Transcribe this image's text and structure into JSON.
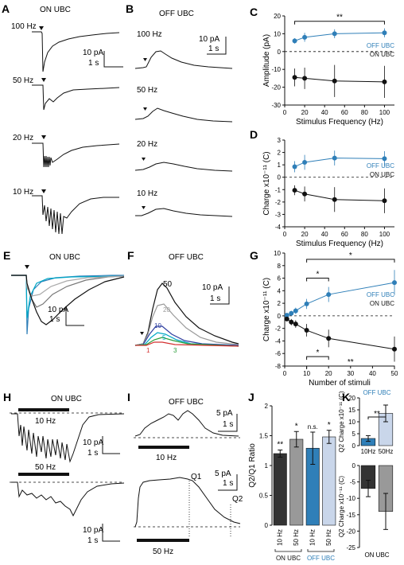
{
  "panels": {
    "A": {
      "letter": "A",
      "title": "ON UBC",
      "traces": [
        "100 Hz",
        "50 Hz",
        "20 Hz",
        "10 Hz"
      ],
      "scale": [
        "10 pA",
        "1 s"
      ]
    },
    "B": {
      "letter": "B",
      "title": "OFF UBC",
      "traces": [
        "100 Hz",
        "50 Hz",
        "20 Hz",
        "10 Hz"
      ],
      "scale": [
        "10 pA",
        "1 s"
      ]
    },
    "E": {
      "letter": "E",
      "title": "ON UBC",
      "scale": [
        "10 pA",
        "1 s"
      ]
    },
    "F": {
      "letter": "F",
      "title": "OFF UBC",
      "scale": [
        "10 pA",
        "1 s"
      ],
      "labels": [
        "50",
        "20",
        "10",
        "5",
        "3",
        "1"
      ]
    },
    "H": {
      "letter": "H",
      "title": "ON UBC",
      "traces": [
        "10 Hz",
        "50 Hz"
      ],
      "scale": [
        "10 pA",
        "1 s"
      ]
    },
    "I": {
      "letter": "I",
      "title": "OFF UBC",
      "traces": [
        "10 Hz",
        "50 Hz"
      ],
      "scale1": [
        "5 pA",
        "1 s"
      ],
      "scale2": [
        "5 pA",
        "1 s"
      ],
      "markers": [
        "Q1",
        "Q2"
      ]
    }
  },
  "colors": {
    "off": "#2f7fb8",
    "on": "#111111",
    "gray": "#999999",
    "lightblue": "#c9d6ea",
    "darkgray": "#333333"
  },
  "chart_data": [
    {
      "panel": "C",
      "type": "line",
      "xlabel": "Stimulus Frequency (Hz)",
      "ylabel": "Amplitude (pA)",
      "xlim": [
        0,
        110
      ],
      "ylim": [
        -30,
        20
      ],
      "xticks": [
        0,
        20,
        40,
        60,
        80,
        100
      ],
      "yticks": [
        -30,
        -20,
        -10,
        0,
        10,
        20
      ],
      "series": [
        {
          "name": "OFF UBC",
          "color": "#2f7fb8",
          "x": [
            10,
            20,
            50,
            100
          ],
          "y": [
            6,
            8,
            10,
            10.5
          ],
          "err": [
            1.5,
            2.5,
            2.5,
            2.5
          ]
        },
        {
          "name": "ON UBC",
          "color": "#111111",
          "x": [
            10,
            20,
            50,
            100
          ],
          "y": [
            -14.5,
            -15,
            -16.5,
            -17
          ],
          "err": [
            5,
            6,
            9,
            9
          ]
        }
      ],
      "significance": [
        {
          "label": "**",
          "x1": 10,
          "x2": 100,
          "y": 17
        }
      ]
    },
    {
      "panel": "D",
      "type": "line",
      "xlabel": "Stimulus Frequency (Hz)",
      "ylabel": "Charge x10⁻¹¹ (C)",
      "xlim": [
        0,
        110
      ],
      "ylim": [
        -4,
        3
      ],
      "xticks": [
        0,
        20,
        40,
        60,
        80,
        100
      ],
      "yticks": [
        -4,
        -3,
        -2,
        -1,
        0,
        1,
        2,
        3
      ],
      "series": [
        {
          "name": "OFF UBC",
          "color": "#2f7fb8",
          "x": [
            10,
            20,
            50,
            100
          ],
          "y": [
            0.85,
            1.2,
            1.55,
            1.5
          ],
          "err": [
            0.45,
            0.6,
            0.6,
            0.6
          ]
        },
        {
          "name": "ON UBC",
          "color": "#111111",
          "x": [
            10,
            20,
            50,
            100
          ],
          "y": [
            -1.05,
            -1.35,
            -1.8,
            -1.9
          ],
          "err": [
            0.4,
            0.6,
            1.0,
            1.0
          ]
        }
      ]
    },
    {
      "panel": "G",
      "type": "line",
      "xlabel": "Number of stimuli",
      "ylabel": "Charge x10⁻¹¹ (C)",
      "xlim": [
        0,
        50
      ],
      "ylim": [
        -8,
        10
      ],
      "xticks": [
        0,
        10,
        20,
        30,
        40,
        50
      ],
      "yticks": [
        -8,
        -6,
        -4,
        -2,
        0,
        2,
        4,
        6,
        8,
        10
      ],
      "series": [
        {
          "name": "OFF UBC",
          "color": "#2f7fb8",
          "x": [
            1,
            3,
            5,
            10,
            20,
            50
          ],
          "y": [
            0.1,
            0.4,
            0.8,
            1.9,
            3.4,
            5.3
          ],
          "err": [
            0.3,
            0.4,
            0.5,
            0.8,
            1.2,
            2.0
          ]
        },
        {
          "name": "ON UBC",
          "color": "#111111",
          "x": [
            1,
            3,
            5,
            10,
            20,
            50
          ],
          "y": [
            -0.5,
            -1.0,
            -1.3,
            -2.3,
            -3.6,
            -5.3
          ],
          "err": [
            0.3,
            0.5,
            0.6,
            1.0,
            1.4,
            2.0
          ]
        }
      ],
      "significance": [
        {
          "label": "*",
          "x1": 10,
          "x2": 50,
          "y": 9
        },
        {
          "label": "*",
          "x1": 10,
          "x2": 20,
          "y": 6
        },
        {
          "label": "*",
          "x1": 10,
          "x2": 20,
          "y": -6.5
        },
        {
          "label": "**",
          "x1": 10,
          "x2": 50,
          "y": -8
        }
      ]
    },
    {
      "panel": "J",
      "type": "bar",
      "ylabel": "Q2/Q1 Ratio",
      "ylim": [
        0,
        2
      ],
      "yticks": [
        0,
        0.5,
        1.0,
        1.5,
        2.0
      ],
      "categories": [
        "10 Hz",
        "50 Hz",
        "10 Hz",
        "50 Hz"
      ],
      "groups": [
        "ON UBC",
        "OFF UBC"
      ],
      "values": [
        1.2,
        1.44,
        1.29,
        1.48
      ],
      "err": [
        0.06,
        0.13,
        0.27,
        0.11
      ],
      "colors": [
        "#333333",
        "#999999",
        "#2f7fb8",
        "#c9d6ea"
      ],
      "stars": [
        "**",
        "*",
        "n.s.",
        "*"
      ]
    },
    {
      "panel": "K",
      "type": "bar",
      "ylabel": "Q2 Charge x10⁻¹¹ (C)",
      "title": "OFF UBC",
      "ylim": [
        0,
        20
      ],
      "yticks": [
        0,
        5,
        10,
        15,
        20
      ],
      "categories": [
        "10Hz",
        "50Hz"
      ],
      "values": [
        3,
        13.5
      ],
      "err": [
        1.2,
        3.5
      ],
      "colors": [
        "#2f7fb8",
        "#c9d6ea"
      ],
      "significance": [
        {
          "label": "**",
          "x1": 0,
          "x2": 1
        }
      ]
    },
    {
      "panel": "K2",
      "type": "bar",
      "ylabel": "Q2 Charge x10⁻¹¹ (C)",
      "xlabel": "ON UBC",
      "ylim": [
        -25,
        0
      ],
      "yticks": [
        -25,
        -20,
        -15,
        -10,
        -5,
        0
      ],
      "categories": [
        "10Hz",
        "50Hz"
      ],
      "values": [
        -7,
        -14
      ],
      "err": [
        2.5,
        5.5
      ],
      "colors": [
        "#333333",
        "#999999"
      ]
    }
  ]
}
